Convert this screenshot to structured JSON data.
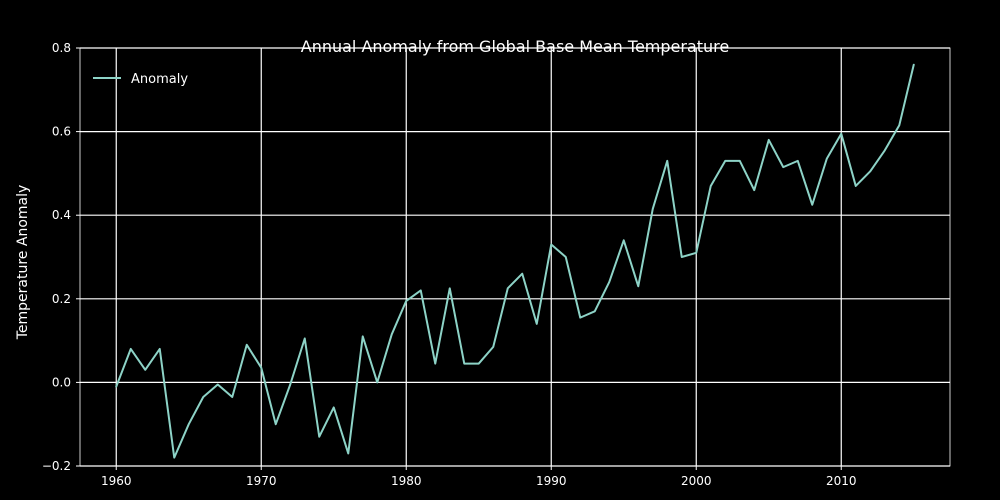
{
  "chart_data": {
    "type": "line",
    "title": "Annual Anomaly from Global Base Mean Temperature",
    "xlabel": "",
    "ylabel": "Temperature Anomaly",
    "xlim": [
      1957.5,
      2017.5
    ],
    "ylim": [
      -0.2,
      0.8
    ],
    "x_ticks": [
      1960,
      1970,
      1980,
      1990,
      2000,
      2010
    ],
    "y_ticks": [
      -0.2,
      0.0,
      0.2,
      0.4,
      0.6,
      0.8
    ],
    "x_tick_labels": [
      "1960",
      "1970",
      "1980",
      "1990",
      "2000",
      "2010"
    ],
    "y_tick_labels": [
      "−0.2",
      "0.0",
      "0.2",
      "0.4",
      "0.6",
      "0.8"
    ],
    "grid": true,
    "legend": {
      "placement": "top-left",
      "entries": [
        "Anomaly"
      ]
    },
    "colors": {
      "background": "#000000",
      "axes": "#ffffff",
      "grid": "#ffffff",
      "series": "#8dd3c7"
    },
    "series": [
      {
        "name": "Anomaly",
        "x": [
          1960,
          1961,
          1962,
          1963,
          1964,
          1965,
          1966,
          1967,
          1968,
          1969,
          1970,
          1971,
          1972,
          1973,
          1974,
          1975,
          1976,
          1977,
          1978,
          1979,
          1980,
          1981,
          1982,
          1983,
          1984,
          1985,
          1986,
          1987,
          1988,
          1989,
          1990,
          1991,
          1992,
          1993,
          1994,
          1995,
          1996,
          1997,
          1998,
          1999,
          2000,
          2001,
          2002,
          2003,
          2004,
          2005,
          2006,
          2007,
          2008,
          2009,
          2010,
          2011,
          2012,
          2013,
          2014,
          2015
        ],
        "values": [
          -0.01,
          0.08,
          0.03,
          0.08,
          -0.18,
          -0.1,
          -0.035,
          -0.005,
          -0.035,
          0.09,
          0.035,
          -0.1,
          -0.005,
          0.105,
          -0.13,
          -0.06,
          -0.17,
          0.11,
          0.0,
          0.115,
          0.195,
          0.22,
          0.045,
          0.225,
          0.045,
          0.045,
          0.085,
          0.225,
          0.26,
          0.14,
          0.33,
          0.3,
          0.155,
          0.17,
          0.24,
          0.34,
          0.23,
          0.415,
          0.53,
          0.3,
          0.31,
          0.47,
          0.53,
          0.53,
          0.46,
          0.58,
          0.515,
          0.53,
          0.425,
          0.535,
          0.595,
          0.47,
          0.505,
          0.555,
          0.615,
          0.76
        ]
      }
    ]
  }
}
